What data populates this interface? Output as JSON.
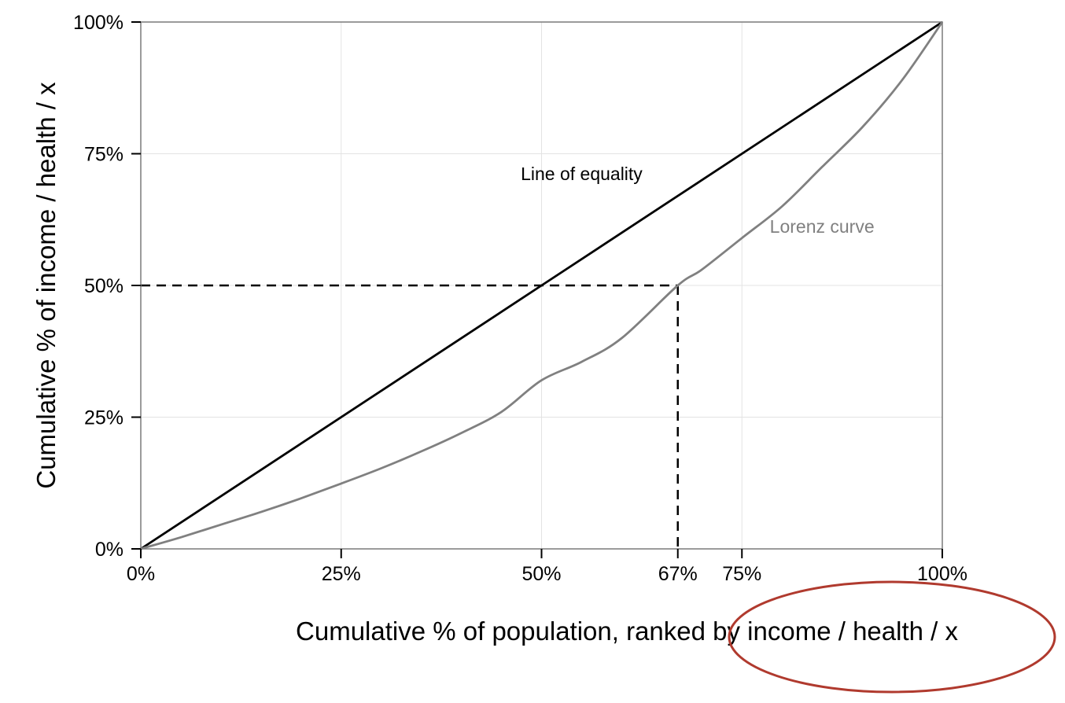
{
  "chart_data": {
    "type": "line",
    "xlabel": "Cumulative % of population, ranked by income / health / x",
    "ylabel": "Cumulative % of income / health / x",
    "xlim": [
      0,
      100
    ],
    "ylim": [
      0,
      100
    ],
    "grid": true,
    "x_ticks": [
      {
        "value": 0,
        "label": "0%"
      },
      {
        "value": 25,
        "label": "25%"
      },
      {
        "value": 50,
        "label": "50%"
      },
      {
        "value": 67,
        "label": "67%"
      },
      {
        "value": 75,
        "label": "75%"
      },
      {
        "value": 100,
        "label": "100%"
      }
    ],
    "y_ticks": [
      {
        "value": 0,
        "label": "0%"
      },
      {
        "value": 25,
        "label": "25%"
      },
      {
        "value": 50,
        "label": "50%"
      },
      {
        "value": 75,
        "label": "75%"
      },
      {
        "value": 100,
        "label": "100%"
      }
    ],
    "x_gridlines": [
      0,
      25,
      50,
      75,
      100
    ],
    "y_gridlines": [
      0,
      25,
      50,
      75,
      100
    ],
    "series": [
      {
        "name": "Line of equality",
        "color": "#000000",
        "x": [
          0,
          100
        ],
        "y": [
          0,
          100
        ]
      },
      {
        "name": "Lorenz curve",
        "color": "#808080",
        "x": [
          0,
          5,
          10,
          15,
          20,
          25,
          30,
          35,
          40,
          45,
          50,
          55,
          60,
          67,
          70,
          75,
          80,
          85,
          90,
          95,
          100
        ],
        "y": [
          0,
          2.2,
          4.6,
          7.0,
          9.6,
          12.4,
          15.3,
          18.5,
          22.0,
          26.0,
          32.0,
          35.5,
          40.0,
          50.0,
          53.0,
          59.0,
          65.0,
          72.5,
          80.0,
          89.0,
          100.0
        ]
      }
    ],
    "reference_lines": {
      "color": "#000000",
      "style": "dashed",
      "horizontal": {
        "y": 50,
        "x_from": 0,
        "x_to": 67
      },
      "vertical": {
        "x": 67,
        "y_from": 0,
        "y_to": 50
      }
    },
    "annotations": [
      {
        "text": "Line of equality",
        "x": 55,
        "y": 70,
        "color": "#000000"
      },
      {
        "text": "Lorenz curve",
        "x": 85,
        "y": 60,
        "color": "#808080"
      }
    ],
    "highlight": {
      "shape": "ellipse",
      "color": "#b03a2e",
      "target": "income / health / x"
    }
  }
}
